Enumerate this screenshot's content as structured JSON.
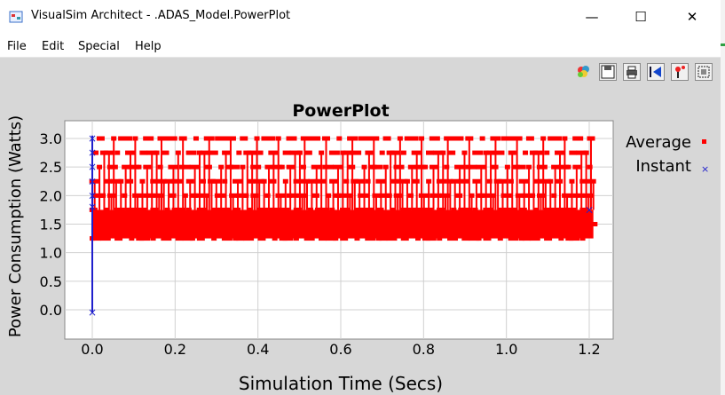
{
  "window": {
    "title": "VisualSim Architect - .ADAS_Model.PowerPlot",
    "minimize_glyph": "—",
    "maximize_glyph": "☐",
    "close_glyph": "✕"
  },
  "menu": [
    "File",
    "Edit",
    "Special",
    "Help"
  ],
  "toolbar": {
    "icons": [
      "color-palette-icon",
      "save-icon",
      "print-icon",
      "fit-icon",
      "pin-icon",
      "grid-icon"
    ]
  },
  "colors": {
    "average": "#ff0000",
    "instant": "#1f1fcc",
    "plot_bg": "#ffffff",
    "panel_bg": "#d7d7d7"
  },
  "chart_data": {
    "type": "scatter",
    "title": "PowerPlot",
    "xlabel": "Simulation Time (Secs)",
    "ylabel": "Power Consumption (Watts)",
    "xlim": [
      -0.05,
      1.25
    ],
    "ylim": [
      -0.1,
      3.15
    ],
    "xticks": [
      "0.0",
      "0.2",
      "0.4",
      "0.6",
      "0.8",
      "1.0",
      "1.2"
    ],
    "yticks": [
      "0.0",
      "0.5",
      "1.0",
      "1.5",
      "2.0",
      "2.5",
      "3.0"
    ],
    "grid": true,
    "legend_placement": "right",
    "series": [
      {
        "name": "Average",
        "marker": "square",
        "x_range": [
          0.0,
          1.21
        ],
        "values": [
          1.25,
          1.5,
          1.75,
          2.0,
          2.25,
          2.5,
          2.75,
          3.0
        ],
        "note_density": "dense"
      },
      {
        "name": "Instant",
        "marker": "x",
        "points": [
          [
            0.0,
            -0.05
          ],
          [
            0.0,
            1.8
          ],
          [
            0.0,
            2.0
          ],
          [
            0.0,
            2.25
          ],
          [
            0.0,
            2.5
          ],
          [
            0.0,
            2.75
          ],
          [
            0.0,
            3.0
          ],
          [
            1.2,
            1.75
          ]
        ]
      }
    ]
  }
}
